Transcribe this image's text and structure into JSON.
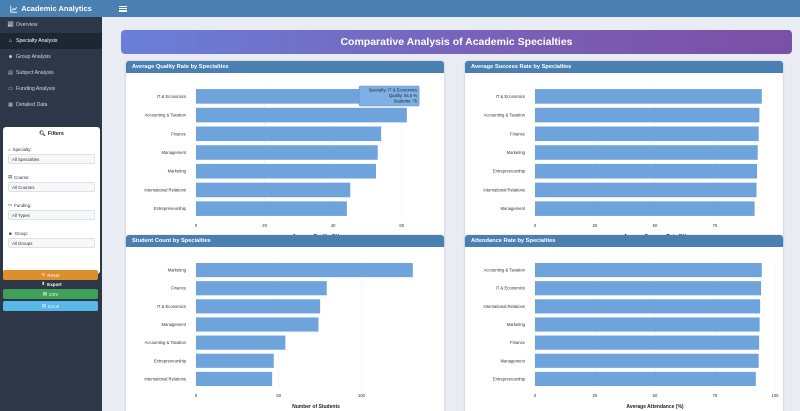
{
  "app": {
    "title": "Academic Analytics",
    "icon": "line-chart-icon"
  },
  "sidebar": {
    "nav": [
      {
        "label": "Overview",
        "icon": "chart-icon",
        "active": false
      },
      {
        "label": "Specialty Analysis",
        "icon": "graduation-cap-icon",
        "active": true
      },
      {
        "label": "Group Analysis",
        "icon": "users-icon",
        "active": false
      },
      {
        "label": "Subject Analysis",
        "icon": "book-icon",
        "active": false
      },
      {
        "label": "Funding Analysis",
        "icon": "money-icon",
        "active": false
      },
      {
        "label": "Detailed Data",
        "icon": "table-icon",
        "active": false
      }
    ],
    "filters": {
      "title": "Filters",
      "items": [
        {
          "label": "Specialty:",
          "value": "All Specialties",
          "icon": "graduation-cap-icon"
        },
        {
          "label": "Course:",
          "value": "All Courses",
          "icon": "book-icon"
        },
        {
          "label": "Funding:",
          "value": "All Types",
          "icon": "money-icon"
        },
        {
          "label": "Group:",
          "value": "All Groups",
          "icon": "users-icon"
        }
      ]
    },
    "controls": {
      "title": "Controls",
      "reset": "Reset",
      "export_title": "Export",
      "csv": "CSV",
      "excel": "Excel"
    }
  },
  "header": {
    "title": "Comparative Analysis of Academic Specialties"
  },
  "chart_data": [
    {
      "id": "quality",
      "type": "bar",
      "orientation": "horizontal",
      "title": "Average Quality Rate by Specialties",
      "xlabel": "Average Quality (%)",
      "xlim": [
        0,
        70
      ],
      "ticks": [
        0,
        20,
        40,
        60
      ],
      "categories": [
        "IT & Economics",
        "Accounting & Taxation",
        "Finance",
        "Management",
        "Marketing",
        "International Relations",
        "Entrepreneurship"
      ],
      "values": [
        64.5,
        61.5,
        54,
        53,
        52.5,
        45,
        44
      ],
      "tooltip": {
        "lines": [
          "Specialty: IT & Economics",
          "Quality: 64.5 %",
          "Students: 75"
        ]
      }
    },
    {
      "id": "success",
      "type": "bar",
      "orientation": "horizontal",
      "title": "Average Success Rate by Specialties",
      "xlabel": "Average Success Rate (%)",
      "xlim": [
        0,
        100
      ],
      "ticks": [
        0,
        25,
        50,
        75
      ],
      "categories": [
        "IT & Economics",
        "Accounting & Taxation",
        "Finance",
        "Marketing",
        "Entrepreneurship",
        "International Relations",
        "Management"
      ],
      "values": [
        94.5,
        93.5,
        93.2,
        92.8,
        92.5,
        92.3,
        91.5
      ]
    },
    {
      "id": "students",
      "type": "bar",
      "orientation": "horizontal",
      "title": "Student Count by Specialties",
      "xlabel": "Number of Students",
      "xlim": [
        0,
        145
      ],
      "ticks": [
        0,
        50,
        100
      ],
      "categories": [
        "Marketing",
        "Finance",
        "IT & Economics",
        "Management",
        "Accounting & Taxation",
        "Entrepreneurship",
        "International Relations"
      ],
      "values": [
        131,
        79,
        75,
        74,
        54,
        47,
        46
      ]
    },
    {
      "id": "attendance",
      "type": "bar",
      "orientation": "horizontal",
      "title": "Attendance Rate by Specialties",
      "xlabel": "Average Attendance (%)",
      "xlim": [
        0,
        100
      ],
      "ticks": [
        0,
        25,
        50,
        75,
        100
      ],
      "categories": [
        "Accounting & Taxation",
        "IT & Economics",
        "International Relations",
        "Marketing",
        "Finance",
        "Management",
        "Entrepreneurship"
      ],
      "values": [
        94.5,
        94.2,
        93.8,
        93.6,
        93.4,
        93.2,
        92
      ]
    }
  ],
  "colors": {
    "bar": "#6fa3dc",
    "header_blue": "#4a7fb2",
    "sidebar": "#2d3748"
  }
}
